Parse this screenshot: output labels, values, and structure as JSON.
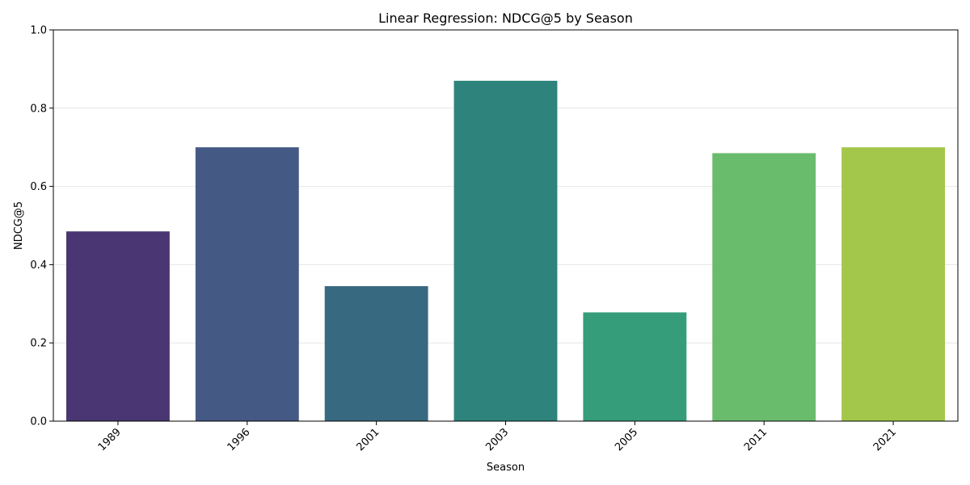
{
  "chart_data": {
    "type": "bar",
    "title": "Linear Regression: NDCG@5 by Season",
    "xlabel": "Season",
    "ylabel": "NDCG@5",
    "categories": [
      "1989",
      "1996",
      "2001",
      "2003",
      "2005",
      "2011",
      "2021"
    ],
    "values": [
      0.485,
      0.7,
      0.345,
      0.87,
      0.278,
      0.685,
      0.7
    ],
    "ylim": [
      0,
      1.0
    ],
    "yticks": [
      0.0,
      0.2,
      0.4,
      0.6,
      0.8,
      1.0
    ],
    "ytick_labels": [
      "0.0",
      "0.2",
      "0.4",
      "0.6",
      "0.8",
      "1.0"
    ],
    "x_tick_rotation_deg": 45,
    "grid": "y-axis, light",
    "legend": "none",
    "colors": [
      "#4a3672",
      "#445984",
      "#376a80",
      "#2e847c",
      "#369d7b",
      "#6abc6d",
      "#a2c74a"
    ],
    "palette": "viridis"
  }
}
